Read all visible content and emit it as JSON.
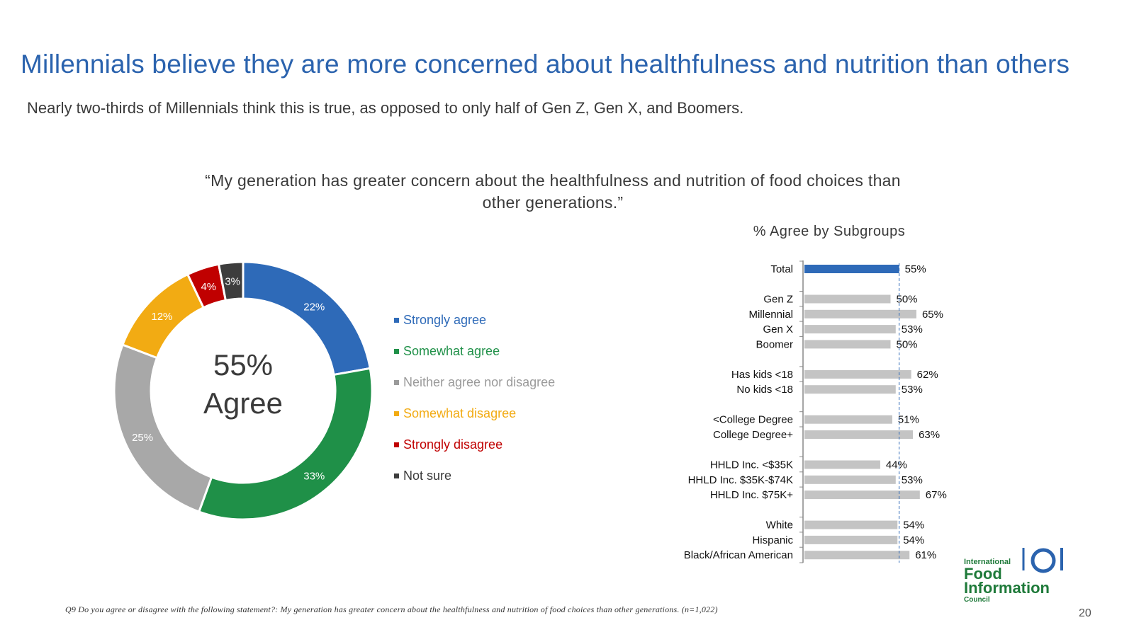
{
  "title": "Millennials believe they are more concerned about healthfulness and nutrition than others",
  "subtitle": "Nearly two-thirds of Millennials think this is true, as opposed to only half of Gen Z, Gen X, and Boomers.",
  "quote": "“My generation has greater concern about the healthfulness and nutrition of food choices than other generations.”",
  "footnote": "Q9 Do you agree or disagree with the following statement?: My generation has greater concern about the healthfulness and nutrition of food choices than other generations. (n=1,022)",
  "page_number": "20",
  "logo": {
    "line1": "International",
    "line2": "Food",
    "line3": "Information",
    "line4": "Council",
    "color": "#1f7a3a"
  },
  "chart_data": [
    {
      "type": "pie",
      "style": "donut",
      "center_value": "55%",
      "center_label": "Agree",
      "categories": [
        "Strongly agree",
        "Somewhat agree",
        "Neither agree nor disagree",
        "Somewhat disagree",
        "Strongly disagree",
        "Not sure"
      ],
      "values": [
        22,
        33,
        25,
        12,
        4,
        3
      ],
      "labels": [
        "22%",
        "33%",
        "25%",
        "12%",
        "4%",
        "3%"
      ],
      "colors": [
        "#2e6ab8",
        "#1f9048",
        "#a8a8a8",
        "#f2ab13",
        "#c00000",
        "#3d3d3d"
      ],
      "legend_colors": [
        "#2e6ab8",
        "#1f9048",
        "#9a9a9a",
        "#f2ab13",
        "#c00000",
        "#3d3d3d"
      ],
      "legend_position": "right"
    },
    {
      "type": "bar",
      "orientation": "horizontal",
      "title": "% Agree by Subgroups",
      "categories": [
        "Total",
        "Gen Z",
        "Millennial",
        "Gen X",
        "Boomer",
        "Has kids <18",
        "No kids <18",
        "<College Degree",
        "College Degree+",
        "HHLD Inc. <$35K",
        "HHLD Inc. $35K-$74K",
        "HHLD Inc. $75K+",
        "White",
        "Hispanic",
        "Black/African American"
      ],
      "groups": [
        1,
        2,
        2,
        2,
        2,
        3,
        3,
        4,
        4,
        5,
        5,
        5,
        6,
        6,
        6
      ],
      "values": [
        55,
        50,
        65,
        53,
        50,
        62,
        53,
        51,
        63,
        44,
        53,
        67,
        54,
        54,
        61
      ],
      "labels": [
        "55%",
        "50%",
        "65%",
        "53%",
        "50%",
        "62%",
        "53%",
        "51%",
        "63%",
        "44%",
        "53%",
        "67%",
        "54%",
        "54%",
        "61%"
      ],
      "highlight_color": "#2e6ab8",
      "bar_color": "#c4c4c4",
      "reference_line": 55,
      "xlim": [
        0,
        100
      ]
    }
  ]
}
